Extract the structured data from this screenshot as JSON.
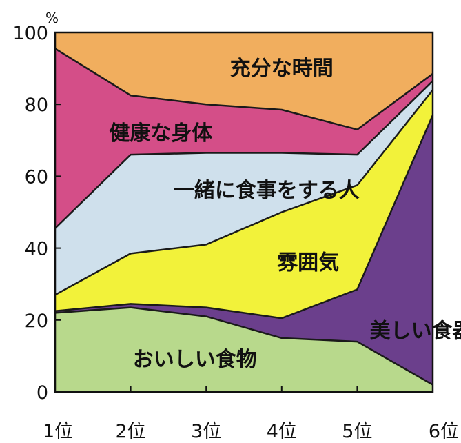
{
  "chart_data": {
    "type": "area",
    "stacked": true,
    "title": "",
    "xlabel": "",
    "ylabel": "",
    "unit": "%",
    "categories": [
      "1位",
      "2位",
      "3位",
      "4位",
      "5位",
      "6位"
    ],
    "ylim": [
      0,
      100
    ],
    "yticks": [
      "0",
      "20",
      "40",
      "60",
      "80",
      "100"
    ],
    "series": [
      {
        "name": "おいしい食物",
        "color": "#b8d98c",
        "values": [
          22,
          23.5,
          21,
          15,
          14,
          2
        ]
      },
      {
        "name": "美しい食器",
        "color": "#6b3f8c",
        "values": [
          0.5,
          1,
          2.5,
          5.5,
          14.5,
          75
        ]
      },
      {
        "name": "雰囲気",
        "color": "#f2f23a",
        "values": [
          4.5,
          14,
          17.5,
          29.5,
          29,
          7
        ]
      },
      {
        "name": "一緒に食事をする人",
        "color": "#cfe0ec",
        "values": [
          18.5,
          27.5,
          25.5,
          16.5,
          8.5,
          2.5
        ]
      },
      {
        "name": "健康な身体",
        "color": "#d44e88",
        "values": [
          50,
          16.5,
          13.5,
          12,
          7,
          2
        ]
      },
      {
        "name": "充分な時間",
        "color": "#f1ae5e",
        "values": [
          4.5,
          17.5,
          20,
          21.5,
          27,
          11.5
        ]
      }
    ]
  }
}
